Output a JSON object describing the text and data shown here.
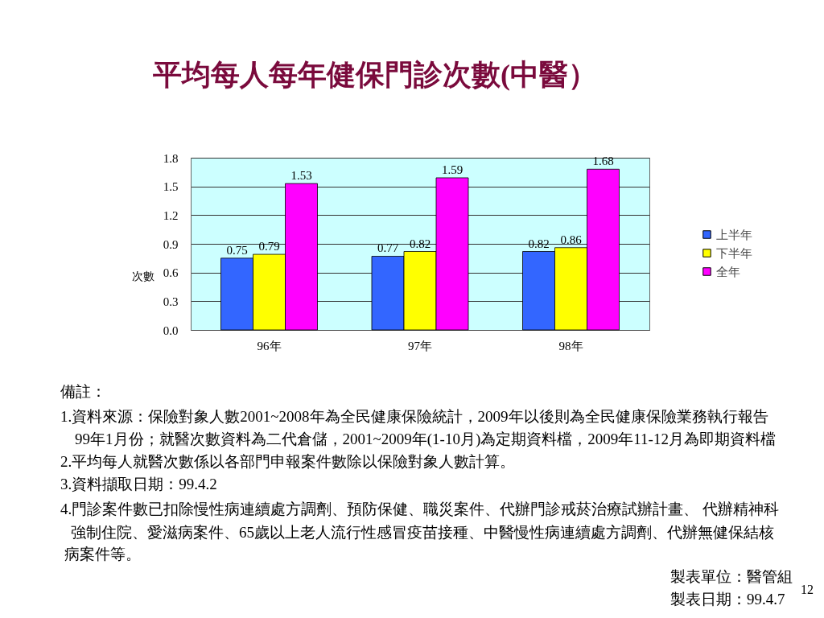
{
  "chart_data": {
    "type": "bar",
    "title": "平均每人每年健保門診次數(中醫）",
    "ylabel": "次數",
    "categories": [
      "96年",
      "97年",
      "98年"
    ],
    "series": [
      {
        "name": "上半年",
        "color": "#3366ff",
        "values": [
          0.75,
          0.77,
          0.82
        ]
      },
      {
        "name": "下半年",
        "color": "#ffff00",
        "values": [
          0.79,
          0.82,
          0.86
        ]
      },
      {
        "name": "全年",
        "color": "#ff00ff",
        "values": [
          1.53,
          1.59,
          1.68
        ]
      }
    ],
    "ylim": [
      0,
      1.8
    ],
    "yticks": [
      {
        "value": 0,
        "label": "0.0"
      },
      0.3,
      0.6,
      0.9,
      1.2,
      1.5,
      1.8
    ],
    "grid": "y",
    "legend": "right",
    "data_labels": true,
    "annotations": [
      "備註：",
      "1.資料來源：保險對象人數2001~2008年為全民健康保險統計，2009年以後則為全民健康保險業務執行報告",
      "99年1月份；就醫次數資料為二代倉儲，2001~2009年(1-10月)為定期資料檔，2009年11-12月為即期資料檔",
      "2.平均每人就醫次數係以各部門申報案件數除以保險對象人數計算。",
      "3.資料擷取日期：99.4.2",
      "4.門診案件數已扣除慢性病連續處方調劑、預防保健、職災案件、代辦門診戒菸治療試辦計畫、 代辦精神科",
      "強制住院、愛滋病案件、65歲以上老人流行性感冒疫苗接種、中醫慢性病連續處方調劑、代辦無健保結核",
      "病案件等。",
      "製表單位：醫管組",
      "製表日期：99.4.7",
      "12"
    ]
  }
}
